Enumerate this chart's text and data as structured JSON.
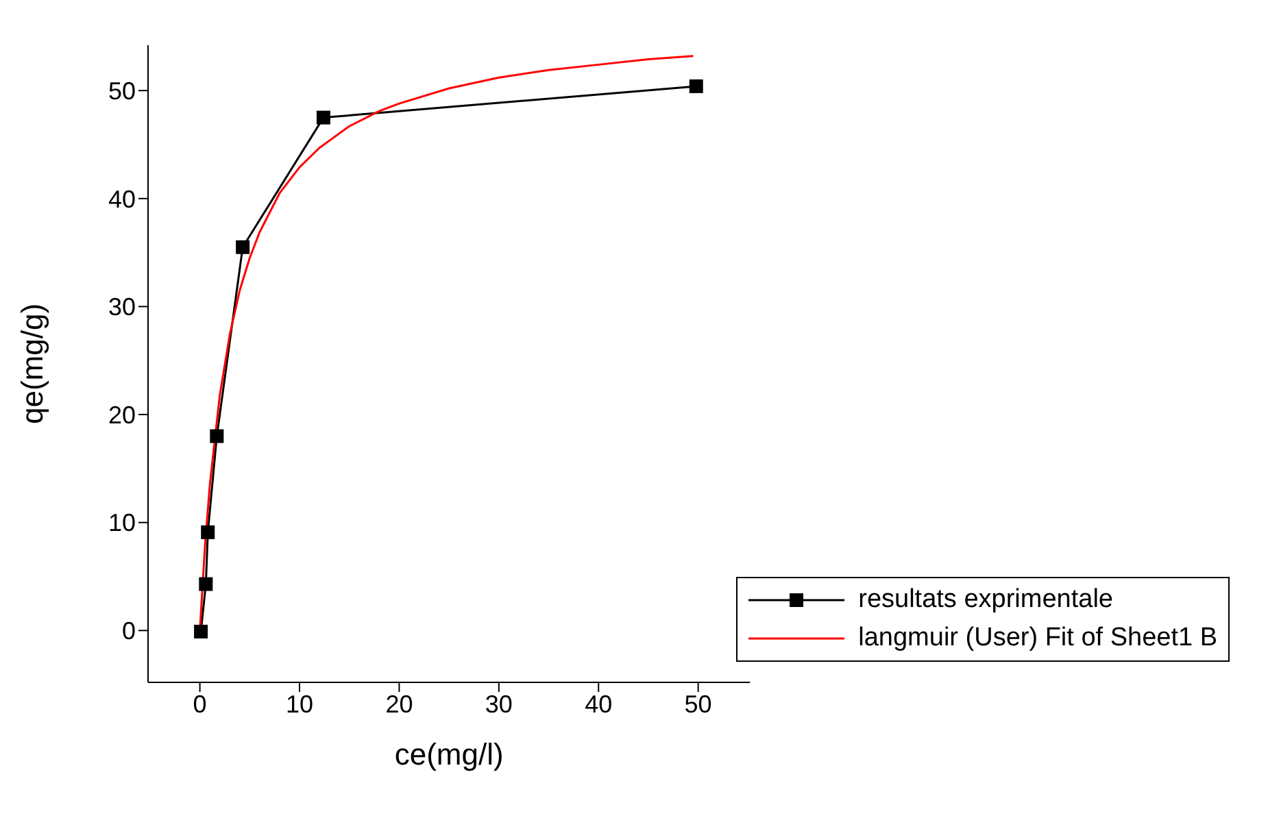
{
  "chart_data": {
    "type": "line",
    "xlabel": "ce(mg/l)",
    "ylabel": "qe(mg/g)",
    "xlim": [
      -5.2,
      55.2
    ],
    "ylim": [
      -4.8,
      54.2
    ],
    "xticks": [
      0,
      10,
      20,
      30,
      40,
      50
    ],
    "yticks": [
      0,
      10,
      20,
      30,
      40,
      50
    ],
    "legend": "bottom right",
    "series": [
      {
        "name": "resultats exprimentale",
        "color": "#000000",
        "marker": "square",
        "x": [
          0.1,
          0.6,
          0.8,
          1.7,
          4.3,
          12.4,
          49.8
        ],
        "values": [
          -0.1,
          4.3,
          9.1,
          18.0,
          35.5,
          47.5,
          50.4
        ]
      },
      {
        "name": "langmuir (User) Fit of Sheet1 B",
        "color": "#ff0000",
        "marker": "none",
        "x": [
          0,
          0.5,
          1,
          2,
          3,
          4,
          5,
          6,
          8,
          10,
          12,
          15,
          18,
          20,
          25,
          30,
          35,
          40,
          45,
          49.5
        ],
        "values": [
          0,
          7.7,
          13.5,
          21.8,
          27.4,
          31.5,
          34.5,
          36.9,
          40.5,
          42.9,
          44.7,
          46.7,
          48.1,
          48.8,
          50.2,
          51.2,
          51.9,
          52.4,
          52.9,
          53.2
        ]
      }
    ]
  }
}
